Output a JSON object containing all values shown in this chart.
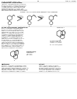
{
  "bg_color": "#ffffff",
  "page_bg": "#f5f5f5",
  "text_color": "#333333",
  "dark_text": "#111111",
  "struct_color": "#222222",
  "gray_text": "#777777",
  "header_left": "J. AM. CHEM. SOC. (S)",
  "header_right": "Apr. 1, 2010",
  "line_color": "#aaaaaa",
  "scheme_line_color": "#999999",
  "arrow_color": "#444444",
  "ellipse_fill": "#e0e0e0",
  "fs_header": 1.6,
  "fs_body": 1.4,
  "fs_tiny": 1.2,
  "fs_section": 1.7,
  "lw_struct": 0.35,
  "lw_line": 0.25
}
